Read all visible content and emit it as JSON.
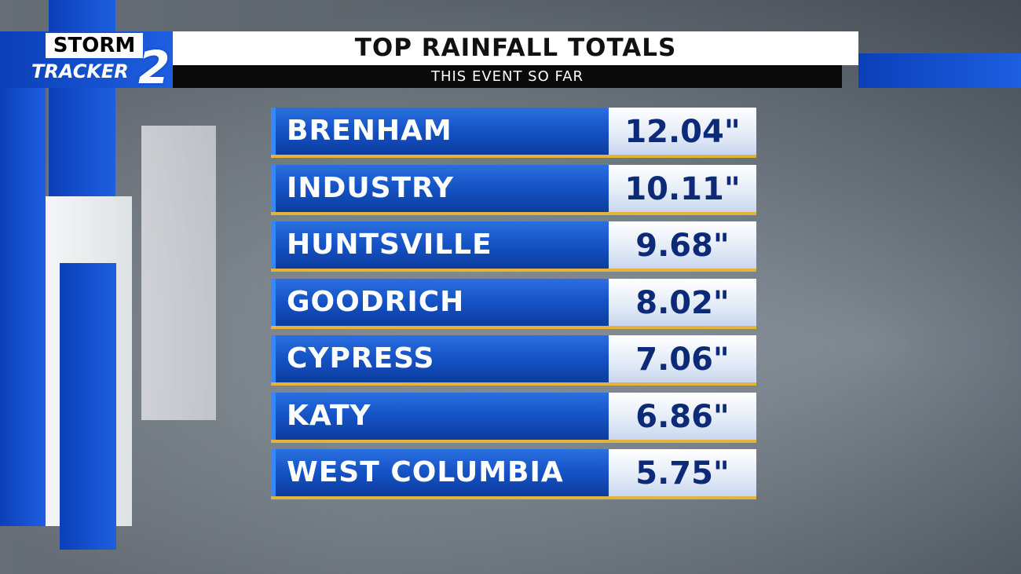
{
  "logo": {
    "line1": "STORM",
    "line2": "TRACKER",
    "number": "2"
  },
  "header": {
    "title": "TOP RAINFALL TOTALS",
    "subtitle": "THIS EVENT SO FAR"
  },
  "table": {
    "rows": [
      {
        "location": "BRENHAM",
        "total": "12.04\""
      },
      {
        "location": "INDUSTRY",
        "total": "10.11\""
      },
      {
        "location": "HUNTSVILLE",
        "total": "9.68\""
      },
      {
        "location": "GOODRICH",
        "total": "8.02\""
      },
      {
        "location": "CYPRESS",
        "total": "7.06\""
      },
      {
        "location": "KATY",
        "total": "6.86\""
      },
      {
        "location": "WEST COLUMBIA",
        "total": "5.75\""
      }
    ]
  }
}
